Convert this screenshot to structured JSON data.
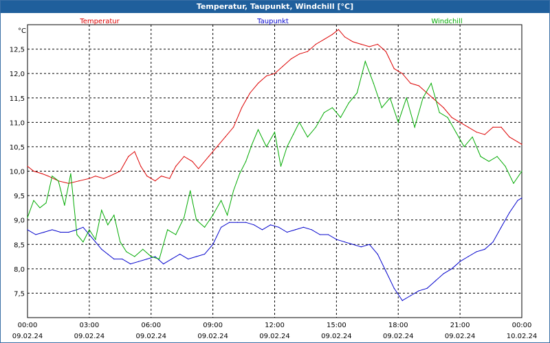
{
  "window": {
    "title": "Temperatur, Taupunkt, Windchill [°C]"
  },
  "chart_data": {
    "type": "line",
    "title": "Temperatur, Taupunkt, Windchill [°C]",
    "ylabel": "°C",
    "ylim": [
      7.0,
      13.0
    ],
    "xlim": [
      0,
      24
    ],
    "grid": true,
    "y_ticks": [
      7.5,
      8.0,
      8.5,
      9.0,
      9.5,
      10.0,
      10.5,
      11.0,
      11.5,
      12.0,
      12.5
    ],
    "y_tick_labels": [
      "7,5",
      "8,0",
      "8,5",
      "9,0",
      "9,5",
      "10,0",
      "10,5",
      "11,0",
      "11,5",
      "12,0",
      "12,5"
    ],
    "x_ticks": [
      {
        "hour": 0,
        "time": "00:00",
        "date": "09.02.24"
      },
      {
        "hour": 3,
        "time": "03:00",
        "date": "09.02.24"
      },
      {
        "hour": 6,
        "time": "06:00",
        "date": "09.02.24"
      },
      {
        "hour": 9,
        "time": "09:00",
        "date": "09.02.24"
      },
      {
        "hour": 12,
        "time": "12:00",
        "date": "09.02.24"
      },
      {
        "hour": 15,
        "time": "15:00",
        "date": "09.02.24"
      },
      {
        "hour": 18,
        "time": "18:00",
        "date": "09.02.24"
      },
      {
        "hour": 21,
        "time": "21:00",
        "date": "09.02.24"
      },
      {
        "hour": 24,
        "time": "00:00",
        "date": "10.02.24"
      }
    ],
    "series": [
      {
        "name": "Temperatur",
        "color": "#dd0000",
        "points": [
          [
            0,
            10.1
          ],
          [
            0.3,
            10.0
          ],
          [
            0.7,
            9.95
          ],
          [
            1.0,
            9.9
          ],
          [
            1.5,
            9.8
          ],
          [
            2.0,
            9.75
          ],
          [
            2.5,
            9.8
          ],
          [
            3.0,
            9.85
          ],
          [
            3.3,
            9.9
          ],
          [
            3.7,
            9.85
          ],
          [
            4.0,
            9.9
          ],
          [
            4.5,
            10.0
          ],
          [
            4.9,
            10.3
          ],
          [
            5.2,
            10.4
          ],
          [
            5.5,
            10.1
          ],
          [
            5.8,
            9.9
          ],
          [
            6.2,
            9.8
          ],
          [
            6.5,
            9.9
          ],
          [
            6.9,
            9.85
          ],
          [
            7.2,
            10.1
          ],
          [
            7.6,
            10.3
          ],
          [
            8.0,
            10.2
          ],
          [
            8.3,
            10.05
          ],
          [
            8.8,
            10.3
          ],
          [
            9.2,
            10.5
          ],
          [
            9.6,
            10.7
          ],
          [
            10.0,
            10.9
          ],
          [
            10.4,
            11.3
          ],
          [
            10.8,
            11.6
          ],
          [
            11.2,
            11.8
          ],
          [
            11.6,
            11.95
          ],
          [
            12.0,
            12.0
          ],
          [
            12.4,
            12.15
          ],
          [
            12.8,
            12.3
          ],
          [
            13.2,
            12.4
          ],
          [
            13.6,
            12.45
          ],
          [
            14.0,
            12.6
          ],
          [
            14.4,
            12.7
          ],
          [
            14.8,
            12.8
          ],
          [
            15.1,
            12.9
          ],
          [
            15.4,
            12.75
          ],
          [
            15.8,
            12.65
          ],
          [
            16.2,
            12.6
          ],
          [
            16.6,
            12.55
          ],
          [
            17.0,
            12.6
          ],
          [
            17.4,
            12.45
          ],
          [
            17.8,
            12.1
          ],
          [
            18.2,
            12.0
          ],
          [
            18.6,
            11.8
          ],
          [
            19.0,
            11.75
          ],
          [
            19.4,
            11.6
          ],
          [
            19.8,
            11.45
          ],
          [
            20.2,
            11.3
          ],
          [
            20.6,
            11.1
          ],
          [
            21.0,
            11.0
          ],
          [
            21.4,
            10.9
          ],
          [
            21.8,
            10.8
          ],
          [
            22.2,
            10.75
          ],
          [
            22.6,
            10.9
          ],
          [
            23.0,
            10.9
          ],
          [
            23.4,
            10.7
          ],
          [
            23.8,
            10.6
          ],
          [
            24.0,
            10.55
          ]
        ]
      },
      {
        "name": "Taupunkt",
        "color": "#0000cc",
        "points": [
          [
            0,
            8.8
          ],
          [
            0.4,
            8.7
          ],
          [
            0.8,
            8.75
          ],
          [
            1.2,
            8.8
          ],
          [
            1.6,
            8.75
          ],
          [
            2.0,
            8.75
          ],
          [
            2.4,
            8.8
          ],
          [
            2.7,
            8.85
          ],
          [
            3.0,
            8.7
          ],
          [
            3.3,
            8.55
          ],
          [
            3.6,
            8.4
          ],
          [
            3.9,
            8.3
          ],
          [
            4.2,
            8.2
          ],
          [
            4.6,
            8.2
          ],
          [
            5.0,
            8.1
          ],
          [
            5.4,
            8.15
          ],
          [
            5.8,
            8.2
          ],
          [
            6.2,
            8.25
          ],
          [
            6.6,
            8.1
          ],
          [
            7.0,
            8.2
          ],
          [
            7.4,
            8.3
          ],
          [
            7.8,
            8.2
          ],
          [
            8.2,
            8.25
          ],
          [
            8.6,
            8.3
          ],
          [
            9.0,
            8.5
          ],
          [
            9.4,
            8.85
          ],
          [
            9.8,
            8.95
          ],
          [
            10.2,
            8.95
          ],
          [
            10.6,
            8.95
          ],
          [
            11.0,
            8.9
          ],
          [
            11.4,
            8.8
          ],
          [
            11.8,
            8.9
          ],
          [
            12.2,
            8.85
          ],
          [
            12.6,
            8.75
          ],
          [
            13.0,
            8.8
          ],
          [
            13.4,
            8.85
          ],
          [
            13.8,
            8.8
          ],
          [
            14.2,
            8.7
          ],
          [
            14.6,
            8.7
          ],
          [
            15.0,
            8.6
          ],
          [
            15.4,
            8.55
          ],
          [
            15.8,
            8.5
          ],
          [
            16.2,
            8.45
          ],
          [
            16.6,
            8.5
          ],
          [
            17.0,
            8.3
          ],
          [
            17.4,
            7.95
          ],
          [
            17.8,
            7.6
          ],
          [
            18.2,
            7.35
          ],
          [
            18.6,
            7.45
          ],
          [
            19.0,
            7.55
          ],
          [
            19.4,
            7.6
          ],
          [
            19.8,
            7.75
          ],
          [
            20.2,
            7.9
          ],
          [
            20.6,
            8.0
          ],
          [
            21.0,
            8.15
          ],
          [
            21.4,
            8.25
          ],
          [
            21.8,
            8.35
          ],
          [
            22.2,
            8.4
          ],
          [
            22.6,
            8.55
          ],
          [
            23.0,
            8.85
          ],
          [
            23.4,
            9.15
          ],
          [
            23.8,
            9.4
          ],
          [
            24.0,
            9.45
          ]
        ]
      },
      {
        "name": "Windchill",
        "color": "#00aa00",
        "points": [
          [
            0,
            9.05
          ],
          [
            0.3,
            9.4
          ],
          [
            0.6,
            9.25
          ],
          [
            0.9,
            9.35
          ],
          [
            1.2,
            9.9
          ],
          [
            1.5,
            9.8
          ],
          [
            1.8,
            9.3
          ],
          [
            2.1,
            9.95
          ],
          [
            2.4,
            8.7
          ],
          [
            2.7,
            8.55
          ],
          [
            3.0,
            8.8
          ],
          [
            3.3,
            8.6
          ],
          [
            3.6,
            9.2
          ],
          [
            3.9,
            8.9
          ],
          [
            4.2,
            9.1
          ],
          [
            4.5,
            8.55
          ],
          [
            4.8,
            8.35
          ],
          [
            5.2,
            8.25
          ],
          [
            5.6,
            8.4
          ],
          [
            6.0,
            8.25
          ],
          [
            6.4,
            8.2
          ],
          [
            6.8,
            8.8
          ],
          [
            7.2,
            8.7
          ],
          [
            7.6,
            9.05
          ],
          [
            7.9,
            9.6
          ],
          [
            8.2,
            9.0
          ],
          [
            8.6,
            8.85
          ],
          [
            9.0,
            9.1
          ],
          [
            9.4,
            9.4
          ],
          [
            9.7,
            9.1
          ],
          [
            10.0,
            9.6
          ],
          [
            10.3,
            9.95
          ],
          [
            10.6,
            10.2
          ],
          [
            10.9,
            10.55
          ],
          [
            11.2,
            10.85
          ],
          [
            11.6,
            10.5
          ],
          [
            12.0,
            10.8
          ],
          [
            12.3,
            10.1
          ],
          [
            12.6,
            10.5
          ],
          [
            12.9,
            10.75
          ],
          [
            13.2,
            11.0
          ],
          [
            13.6,
            10.7
          ],
          [
            14.0,
            10.9
          ],
          [
            14.4,
            11.2
          ],
          [
            14.8,
            11.3
          ],
          [
            15.2,
            11.1
          ],
          [
            15.6,
            11.4
          ],
          [
            16.0,
            11.6
          ],
          [
            16.4,
            12.25
          ],
          [
            16.8,
            11.8
          ],
          [
            17.2,
            11.3
          ],
          [
            17.6,
            11.5
          ],
          [
            18.0,
            11.0
          ],
          [
            18.4,
            11.5
          ],
          [
            18.8,
            10.9
          ],
          [
            19.2,
            11.5
          ],
          [
            19.6,
            11.8
          ],
          [
            20.0,
            11.2
          ],
          [
            20.4,
            11.1
          ],
          [
            20.8,
            10.8
          ],
          [
            21.2,
            10.5
          ],
          [
            21.6,
            10.7
          ],
          [
            22.0,
            10.3
          ],
          [
            22.4,
            10.2
          ],
          [
            22.8,
            10.3
          ],
          [
            23.2,
            10.1
          ],
          [
            23.6,
            9.75
          ],
          [
            24.0,
            10.0
          ]
        ]
      }
    ]
  }
}
